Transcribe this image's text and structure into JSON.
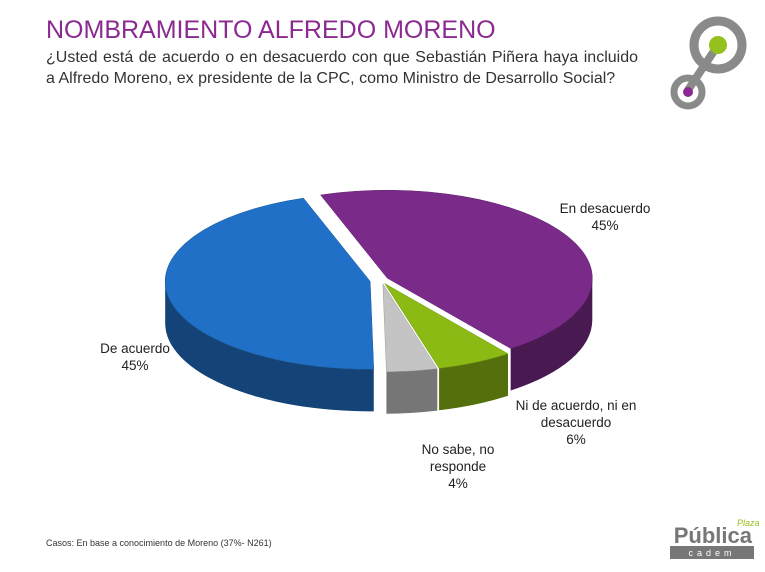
{
  "chart_data": {
    "type": "pie",
    "title": "NOMBRAMIENTO ALFREDO MORENO",
    "subtitle": "¿Usted está de acuerdo o en desacuerdo con que Sebastián Piñera haya incluido a Alfredo Moreno, ex presidente de la CPC, como Ministro de Desarrollo Social?",
    "categories": [
      "En desacuerdo",
      "Ni de acuerdo, ni en desacuerdo",
      "No sabe, no responde",
      "De acuerdo"
    ],
    "values": [
      45,
      6,
      4,
      45
    ],
    "value_labels": [
      "45%",
      "6%",
      "4%",
      "45%"
    ],
    "colors": [
      "#7a2a89",
      "#8cba14",
      "#c4c4c4",
      "#1f70c6"
    ],
    "footnote": "Casos: En base a conocimiento de Moreno (37%- N261)"
  },
  "logo": {
    "top": "Plaza",
    "main": "Pública",
    "bottom": "cadem"
  }
}
